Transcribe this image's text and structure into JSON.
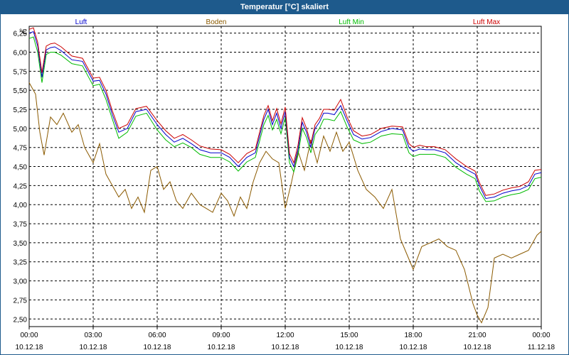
{
  "window": {
    "title": "Temperatur [°C] skaliert"
  },
  "chart_data": {
    "type": "line",
    "title": "Temperatur [°C] skaliert",
    "ylabel": "°C",
    "xlabel": "",
    "ylim": [
      2.4,
      6.34
    ],
    "xlim": [
      0,
      24
    ],
    "grid": true,
    "legend_position": "top",
    "y_ticks": [
      "2,50",
      "2,75",
      "3,00",
      "3,25",
      "3,50",
      "3,75",
      "4,00",
      "4,25",
      "4,50",
      "4,75",
      "5,00",
      "5,25",
      "5,50",
      "5,75",
      "6,00",
      "6,25"
    ],
    "x_ticks": [
      {
        "time": "00:00",
        "date": "10.12.18"
      },
      {
        "time": "03:00",
        "date": "10.12.18"
      },
      {
        "time": "06:00",
        "date": "10.12.18"
      },
      {
        "time": "09:00",
        "date": "10.12.18"
      },
      {
        "time": "12:00",
        "date": "10.12.18"
      },
      {
        "time": "15:00",
        "date": "10.12.18"
      },
      {
        "time": "18:00",
        "date": "10.12.18"
      },
      {
        "time": "21:00",
        "date": "10.12.18"
      },
      {
        "time": "00:00",
        "date": "11.12.18"
      }
    ],
    "series": [
      {
        "name": "Luft",
        "color": "#0000cc",
        "x": [
          0,
          0.2,
          0.4,
          0.6,
          0.8,
          1.0,
          1.2,
          1.5,
          2.0,
          2.5,
          3.0,
          3.3,
          3.6,
          3.9,
          4.2,
          4.6,
          5.0,
          5.5,
          6.0,
          6.4,
          6.8,
          7.2,
          7.6,
          8.0,
          8.5,
          9.0,
          9.4,
          9.8,
          10.2,
          10.6,
          11.0,
          11.2,
          11.4,
          11.6,
          11.8,
          12.0,
          12.2,
          12.4,
          12.6,
          12.8,
          13.0,
          13.2,
          13.4,
          13.6,
          13.8,
          14.0,
          14.3,
          14.6,
          14.9,
          15.2,
          15.6,
          16.0,
          16.5,
          17.0,
          17.5,
          17.8,
          18.0,
          18.3,
          18.6,
          19.0,
          19.5,
          20.0,
          20.5,
          20.9,
          21.1,
          21.4,
          21.8,
          22.2,
          22.6,
          23.0,
          23.4,
          23.7,
          24.0
        ],
        "y": [
          6.25,
          6.27,
          6.08,
          5.67,
          6.03,
          6.06,
          6.07,
          6.02,
          5.9,
          5.88,
          5.62,
          5.63,
          5.45,
          5.18,
          4.95,
          5.0,
          5.22,
          5.25,
          5.05,
          4.92,
          4.82,
          4.87,
          4.8,
          4.72,
          4.68,
          4.68,
          4.62,
          4.5,
          4.62,
          4.68,
          5.12,
          5.25,
          5.05,
          5.2,
          5.0,
          5.22,
          4.62,
          4.5,
          4.72,
          5.08,
          4.95,
          4.75,
          5.0,
          5.08,
          5.2,
          5.2,
          5.18,
          5.3,
          5.1,
          4.92,
          4.86,
          4.88,
          4.96,
          5.0,
          4.98,
          4.75,
          4.7,
          4.73,
          4.72,
          4.72,
          4.68,
          4.55,
          4.46,
          4.4,
          4.25,
          4.08,
          4.1,
          4.15,
          4.18,
          4.2,
          4.25,
          4.4,
          4.42
        ]
      },
      {
        "name": "Boden",
        "color": "#8b5a00",
        "x": [
          0,
          0.3,
          0.5,
          0.7,
          1.0,
          1.3,
          1.6,
          2.0,
          2.3,
          2.6,
          3.0,
          3.3,
          3.6,
          3.9,
          4.2,
          4.5,
          4.8,
          5.1,
          5.4,
          5.7,
          6.0,
          6.3,
          6.6,
          6.9,
          7.2,
          7.6,
          8.0,
          8.3,
          8.6,
          9.0,
          9.3,
          9.6,
          9.9,
          10.2,
          10.5,
          10.8,
          11.1,
          11.4,
          11.7,
          12.0,
          12.3,
          12.6,
          12.9,
          13.2,
          13.5,
          13.8,
          14.1,
          14.4,
          14.7,
          15.0,
          15.4,
          15.8,
          16.2,
          16.6,
          17.0,
          17.4,
          17.7,
          18.0,
          18.4,
          18.8,
          19.2,
          19.6,
          20.0,
          20.4,
          20.8,
          21.0,
          21.2,
          21.5,
          21.8,
          22.2,
          22.6,
          23.0,
          23.4,
          23.8,
          24.0
        ],
        "y": [
          5.6,
          5.45,
          4.95,
          4.65,
          5.15,
          5.05,
          5.2,
          4.95,
          5.05,
          4.75,
          4.55,
          4.8,
          4.4,
          4.25,
          4.1,
          4.2,
          3.95,
          4.1,
          3.9,
          4.45,
          4.5,
          4.2,
          4.3,
          4.05,
          3.95,
          4.15,
          4.0,
          3.95,
          3.9,
          4.15,
          4.05,
          3.85,
          4.1,
          3.95,
          4.3,
          4.55,
          4.7,
          4.6,
          4.55,
          3.95,
          4.3,
          4.7,
          4.45,
          4.85,
          4.55,
          4.9,
          4.7,
          4.95,
          4.7,
          4.82,
          4.45,
          4.2,
          4.1,
          3.95,
          4.2,
          3.55,
          3.35,
          3.15,
          3.45,
          3.5,
          3.55,
          3.45,
          3.4,
          3.15,
          2.7,
          2.55,
          2.45,
          2.65,
          3.3,
          3.35,
          3.3,
          3.35,
          3.4,
          3.6,
          3.65
        ]
      },
      {
        "name": "Luft Min",
        "color": "#00bb00",
        "x": [
          0,
          0.2,
          0.4,
          0.6,
          0.8,
          1.0,
          1.2,
          1.5,
          2.0,
          2.5,
          3.0,
          3.3,
          3.6,
          3.9,
          4.2,
          4.6,
          5.0,
          5.5,
          6.0,
          6.4,
          6.8,
          7.2,
          7.6,
          8.0,
          8.5,
          9.0,
          9.4,
          9.8,
          10.2,
          10.6,
          11.0,
          11.2,
          11.4,
          11.6,
          11.8,
          12.0,
          12.2,
          12.4,
          12.6,
          12.8,
          13.0,
          13.2,
          13.4,
          13.6,
          13.8,
          14.0,
          14.3,
          14.6,
          14.9,
          15.2,
          15.6,
          16.0,
          16.5,
          17.0,
          17.5,
          17.8,
          18.0,
          18.3,
          18.6,
          19.0,
          19.5,
          20.0,
          20.5,
          20.9,
          21.1,
          21.4,
          21.8,
          22.2,
          22.6,
          23.0,
          23.4,
          23.7,
          24.0
        ],
        "y": [
          6.18,
          6.2,
          6.0,
          5.6,
          5.97,
          6.0,
          6.0,
          5.96,
          5.85,
          5.82,
          5.56,
          5.58,
          5.38,
          5.12,
          4.87,
          4.95,
          5.16,
          5.2,
          4.98,
          4.85,
          4.76,
          4.81,
          4.75,
          4.66,
          4.62,
          4.62,
          4.56,
          4.44,
          4.56,
          4.62,
          5.05,
          5.17,
          4.98,
          5.12,
          4.93,
          5.14,
          4.55,
          4.43,
          4.65,
          5.0,
          4.88,
          4.68,
          4.92,
          5.0,
          5.12,
          5.12,
          5.1,
          5.22,
          5.02,
          4.85,
          4.8,
          4.82,
          4.9,
          4.93,
          4.92,
          4.68,
          4.63,
          4.66,
          4.66,
          4.66,
          4.62,
          4.49,
          4.4,
          4.34,
          4.18,
          4.04,
          4.05,
          4.1,
          4.13,
          4.15,
          4.2,
          4.34,
          4.36
        ]
      },
      {
        "name": "Luft Max",
        "color": "#cc0000",
        "x": [
          0,
          0.2,
          0.4,
          0.6,
          0.8,
          1.0,
          1.2,
          1.5,
          2.0,
          2.5,
          3.0,
          3.3,
          3.6,
          3.9,
          4.2,
          4.6,
          5.0,
          5.5,
          6.0,
          6.4,
          6.8,
          7.2,
          7.6,
          8.0,
          8.5,
          9.0,
          9.4,
          9.8,
          10.2,
          10.6,
          11.0,
          11.2,
          11.4,
          11.6,
          11.8,
          12.0,
          12.2,
          12.4,
          12.6,
          12.8,
          13.0,
          13.2,
          13.4,
          13.6,
          13.8,
          14.0,
          14.3,
          14.6,
          14.9,
          15.2,
          15.6,
          16.0,
          16.5,
          17.0,
          17.5,
          17.8,
          18.0,
          18.3,
          18.6,
          19.0,
          19.5,
          20.0,
          20.5,
          20.9,
          21.1,
          21.4,
          21.8,
          22.2,
          22.6,
          23.0,
          23.4,
          23.7,
          24.0
        ],
        "y": [
          6.3,
          6.32,
          6.13,
          5.73,
          6.08,
          6.11,
          6.12,
          6.07,
          5.95,
          5.92,
          5.66,
          5.67,
          5.5,
          5.23,
          5.0,
          5.05,
          5.26,
          5.29,
          5.1,
          4.97,
          4.87,
          4.92,
          4.85,
          4.77,
          4.73,
          4.72,
          4.66,
          4.55,
          4.67,
          4.73,
          5.17,
          5.3,
          5.1,
          5.26,
          5.06,
          5.28,
          4.67,
          4.55,
          4.78,
          5.14,
          5.0,
          4.8,
          5.05,
          5.13,
          5.25,
          5.25,
          5.24,
          5.38,
          5.15,
          4.97,
          4.9,
          4.92,
          5.0,
          5.03,
          5.02,
          4.8,
          4.75,
          4.78,
          4.76,
          4.76,
          4.72,
          4.6,
          4.5,
          4.44,
          4.29,
          4.12,
          4.14,
          4.19,
          4.22,
          4.24,
          4.3,
          4.45,
          4.46
        ]
      }
    ]
  }
}
